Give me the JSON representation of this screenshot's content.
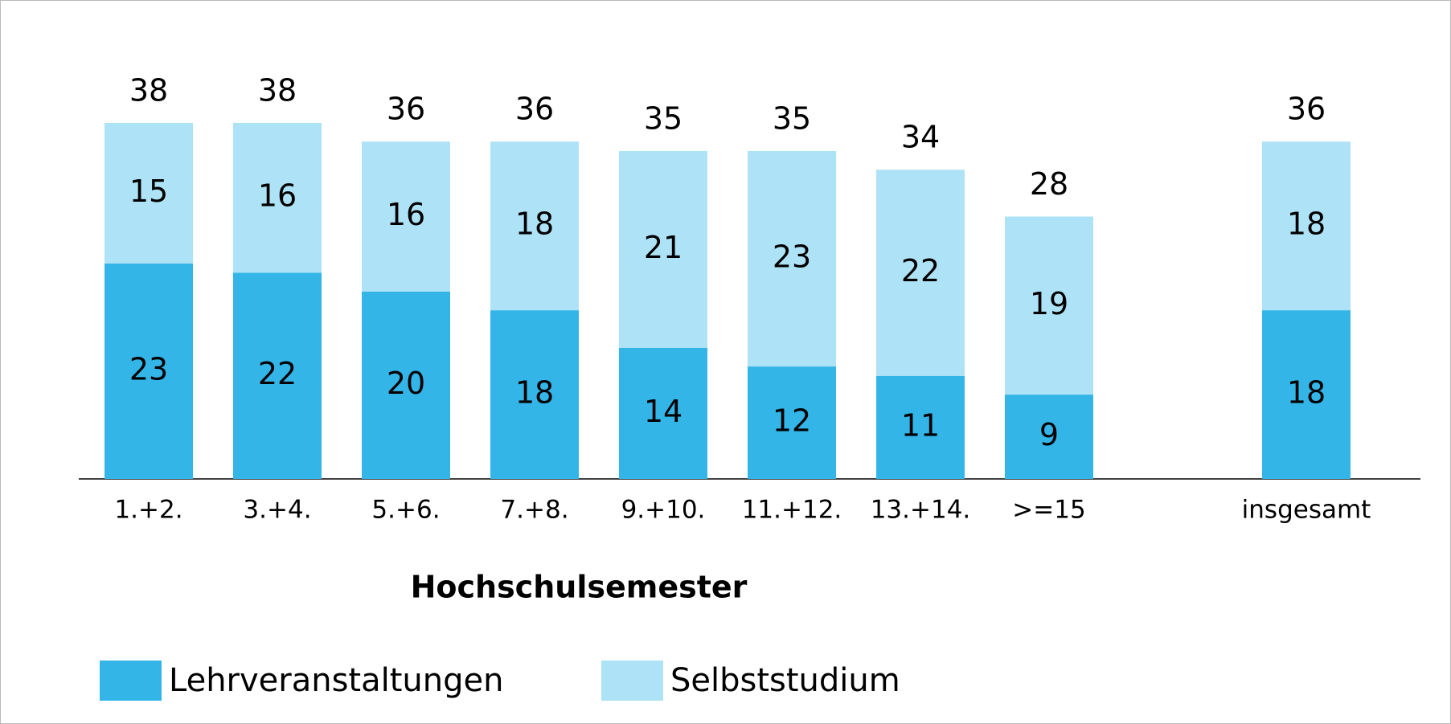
{
  "chart_data": {
    "type": "stacked_bar",
    "x_label": "Hochschulsemester",
    "categories": [
      "1.+2.",
      "3.+4.",
      "5.+6.",
      "7.+8.",
      "9.+10.",
      "11.+12.",
      "13.+14.",
      ">=15",
      "insgesamt"
    ],
    "series": [
      {
        "name": "Lehrveranstaltungen",
        "color": "#33b5e8",
        "values": [
          23,
          22,
          20,
          18,
          14,
          12,
          11,
          9,
          18
        ]
      },
      {
        "name": "Selbststudium",
        "color": "#aee2f6",
        "values": [
          15,
          16,
          16,
          18,
          21,
          23,
          22,
          19,
          18
        ]
      }
    ],
    "totals": [
      38,
      38,
      36,
      36,
      35,
      35,
      34,
      28,
      36
    ]
  }
}
